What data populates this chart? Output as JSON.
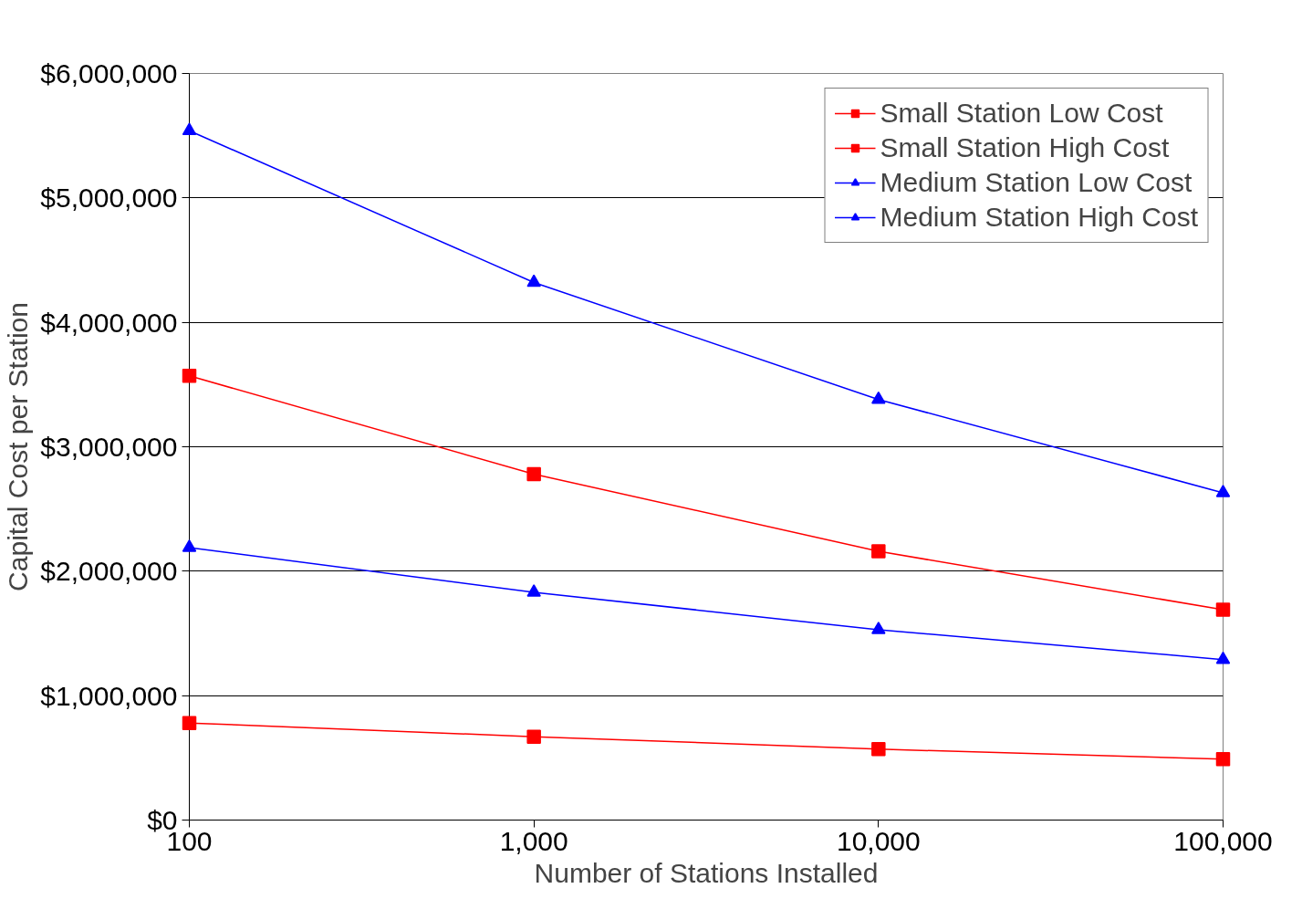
{
  "chart_data": {
    "type": "line",
    "xlabel": "Number of Stations Installed",
    "ylabel": "Capital Cost per Station",
    "x": [
      100,
      1000,
      10000,
      100000
    ],
    "series": [
      {
        "name": "Small Station Low Cost",
        "color": "#ff0000",
        "marker": "square",
        "values": [
          780000,
          670000,
          570000,
          490000
        ]
      },
      {
        "name": "Small Station High Cost",
        "color": "#ff0000",
        "marker": "square",
        "values": [
          3570000,
          2780000,
          2160000,
          1690000
        ]
      },
      {
        "name": "Medium Station Low Cost",
        "color": "#0000ff",
        "marker": "triangle",
        "values": [
          2190000,
          1830000,
          1530000,
          1290000
        ]
      },
      {
        "name": "Medium Station High Cost",
        "color": "#0000ff",
        "marker": "triangle",
        "values": [
          5540000,
          4320000,
          3380000,
          2630000
        ]
      }
    ],
    "log": "x",
    "xlim": [
      100,
      100000
    ],
    "xticks": [
      100,
      {
        "value": 1000,
        "label": "1,000"
      },
      {
        "value": 10000,
        "label": "10,000"
      },
      {
        "value": 100000,
        "label": "100,000"
      }
    ],
    "ylim": [
      0,
      6000000
    ],
    "yticks": [
      {
        "value": 0,
        "label": "$0"
      },
      {
        "value": 1000000,
        "label": "$1,000,000"
      },
      {
        "value": 2000000,
        "label": "$2,000,000"
      },
      {
        "value": 3000000,
        "label": "$3,000,000"
      },
      {
        "value": 4000000,
        "label": "$4,000,000"
      },
      {
        "value": 5000000,
        "label": "$5,000,000"
      },
      {
        "value": 6000000,
        "label": "$6,000,000"
      }
    ],
    "grid": "y",
    "legend": "top right",
    "line_style": "solid"
  }
}
